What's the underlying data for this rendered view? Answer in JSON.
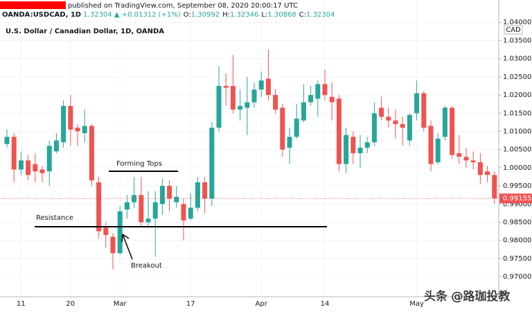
{
  "header": {
    "published": "published on TradingView.com, September 08, 2020 20:00:17 UTC",
    "symbol": "OANDA:USDCAD, 1D",
    "price": "1.32304",
    "change": "▲ +0.01312 (+1%)",
    "ohlc": [
      {
        "label": "O:",
        "value": "1.30992"
      },
      {
        "label": "H:",
        "value": "1.32346"
      },
      {
        "label": "L:",
        "value": "1.30868"
      },
      {
        "label": "C:",
        "value": "1.32304"
      }
    ]
  },
  "watermark": "头条 @路珈投教",
  "chart_data": {
    "type": "candlestick",
    "title": "U.S. Dollar / Canadian Dollar, 1D, OANDA",
    "y_unit": "CAD",
    "up_color": "#26a69a",
    "down_color": "#ef5350",
    "annotations": [
      "Forming Tops",
      "Resistance",
      "Breakout"
    ],
    "last_price": 0.99155,
    "categories": [
      null,
      null,
      "11",
      null,
      null,
      null,
      null,
      null,
      null,
      "20",
      null,
      null,
      null,
      null,
      null,
      null,
      "Mar",
      null,
      null,
      null,
      null,
      null,
      null,
      null,
      null,
      null,
      "17",
      null,
      null,
      null,
      null,
      null,
      null,
      null,
      null,
      null,
      "Apr",
      null,
      null,
      null,
      null,
      null,
      null,
      null,
      null,
      "14",
      null,
      null,
      null,
      null,
      null,
      null,
      null,
      null,
      null,
      null,
      null,
      null,
      "May",
      null,
      null,
      null,
      null,
      null,
      null,
      null,
      null,
      null,
      null,
      null
    ],
    "open": [
      1.0065,
      1.0085,
      0.9995,
      1.002,
      1.001,
      0.9995,
      0.999,
      1.0045,
      1.007,
      1.017,
      1.011,
      1.0095,
      1.0115,
      0.996,
      0.9835,
      0.981,
      0.9765,
      0.9885,
      0.9905,
      0.9925,
      0.985,
      0.986,
      0.99,
      0.995,
      0.9905,
      0.99,
      0.986,
      0.989,
      0.996,
      0.9915,
      1.011,
      1.0225,
      1.0225,
      1.016,
      1.0165,
      1.018,
      1.0215,
      1.0245,
      1.02,
      1.0165,
      1.0055,
      1.0085,
      1.013,
      1.018,
      1.019,
      1.023,
      1.0195,
      1.019,
      1.001,
      1.0085,
      1.004,
      1.0055,
      1.007,
      1.0165,
      1.014,
      1.013,
      1.012,
      1.0075,
      1.015,
      1.0205,
      1.0115,
      1.0015,
      1.0085,
      1.0165,
      1.004,
      1.003,
      1.002,
      1.0015,
      0.999,
      0.998
    ],
    "high": [
      1.0105,
      1.0095,
      1.0045,
      1.0035,
      1.004,
      1.0005,
      1.0075,
      1.0095,
      1.0185,
      1.02,
      1.012,
      1.016,
      1.012,
      0.9975,
      0.985,
      0.982,
      0.9895,
      0.9925,
      0.9975,
      0.9975,
      0.9935,
      0.9935,
      0.997,
      0.9965,
      0.995,
      0.9915,
      0.993,
      0.9975,
      0.9975,
      1.0125,
      1.028,
      1.026,
      1.031,
      1.0215,
      1.025,
      1.0235,
      1.0265,
      1.0325,
      1.0215,
      1.0175,
      1.011,
      1.0175,
      1.023,
      1.0225,
      1.024,
      1.027,
      1.0235,
      1.02,
      1.011,
      1.01,
      1.009,
      1.0085,
      1.018,
      1.0195,
      1.0165,
      1.016,
      1.014,
      1.015,
      1.024,
      1.021,
      1.013,
      1.0095,
      1.017,
      1.017,
      1.009,
      1.0055,
      1.0045,
      1.004,
      1.0005,
      0.999
    ],
    "low": [
      1.0055,
      0.996,
      0.998,
      0.9965,
      0.996,
      0.996,
      0.995,
      1.004,
      1.0055,
      1.006,
      1.006,
      1.007,
      0.995,
      0.9805,
      0.978,
      0.972,
      0.976,
      0.986,
      0.989,
      0.984,
      0.9835,
      0.9755,
      0.987,
      0.988,
      0.989,
      0.98,
      0.9855,
      0.988,
      0.9875,
      0.9895,
      1.01,
      1.017,
      1.015,
      1.013,
      1.009,
      1.0165,
      1.0195,
      1.0185,
      1.015,
      1.003,
      1.001,
      1.008,
      1.0125,
      1.017,
      1.014,
      1.0185,
      1.013,
      0.999,
      0.9985,
      1.001,
      1.0,
      1.004,
      1.006,
      1.013,
      1.011,
      1.008,
      1.006,
      1.006,
      1.013,
      1.01,
      0.999,
      1.001,
      1.0075,
      1.0025,
      1.001,
      1.0,
      0.9995,
      0.9955,
      0.996,
      0.99
    ],
    "close": [
      1.0085,
      0.9995,
      1.002,
      0.998,
      0.999,
      0.9985,
      1.006,
      1.0075,
      1.017,
      1.0105,
      1.01,
      1.0115,
      0.9965,
      0.9825,
      0.9815,
      0.9765,
      0.988,
      0.9905,
      0.9925,
      0.985,
      0.986,
      0.9905,
      0.995,
      0.9915,
      0.992,
      0.9855,
      0.989,
      0.996,
      0.9915,
      1.011,
      1.0225,
      1.022,
      1.016,
      1.017,
      1.018,
      1.0215,
      1.024,
      1.02,
      1.016,
      1.005,
      1.0085,
      1.0135,
      1.018,
      1.02,
      1.023,
      1.02,
      1.018,
      1.001,
      1.009,
      1.004,
      1.0055,
      1.007,
      1.015,
      1.014,
      1.013,
      1.012,
      1.011,
      1.0145,
      1.0205,
      1.011,
      1.001,
      1.008,
      1.0165,
      1.0035,
      1.003,
      1.002,
      1.0015,
      0.998,
      0.998,
      0.99155
    ],
    "ylim": [
      0.9645,
      1.0408
    ],
    "yticks": [
      {
        "value": 0.97,
        "label": "0.97000"
      },
      {
        "value": 0.975,
        "label": "0.97500"
      },
      {
        "value": 0.98,
        "label": "0.98000"
      },
      {
        "value": 0.985,
        "label": "0.98500"
      },
      {
        "value": 0.99,
        "label": "0.99000"
      },
      {
        "value": 0.995,
        "label": "0.99500"
      },
      {
        "value": 1.0,
        "label": "1.00000"
      },
      {
        "value": 1.005,
        "label": "1.00500"
      },
      {
        "value": 1.01,
        "label": "1.01000"
      },
      {
        "value": 1.015,
        "label": "1.01500"
      },
      {
        "value": 1.02,
        "label": "1.02000"
      },
      {
        "value": 1.025,
        "label": "1.02500"
      },
      {
        "value": 1.03,
        "label": "1.03000"
      },
      {
        "value": 1.035,
        "label": "1.03500"
      },
      {
        "value": 1.04,
        "label": "1.04000"
      }
    ],
    "grid": true
  }
}
